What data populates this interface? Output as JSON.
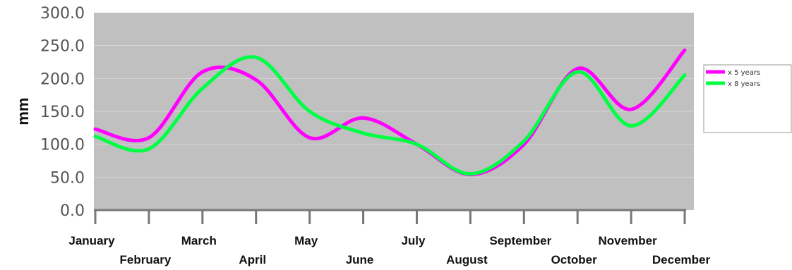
{
  "chart_data": {
    "type": "line",
    "title": "",
    "xlabel": "",
    "ylabel": "mm",
    "ylim": [
      0,
      300
    ],
    "y_ticks": [
      "0.0",
      "50.0",
      "100.0",
      "150.0",
      "200.0",
      "250.0",
      "300.0"
    ],
    "categories": [
      "January",
      "February",
      "March",
      "April",
      "May",
      "June",
      "July",
      "August",
      "September",
      "October",
      "November",
      "December"
    ],
    "series": [
      {
        "name": "x 5 years",
        "color": "#ff00ff",
        "values": [
          123,
          110,
          210,
          198,
          110,
          140,
          100,
          54,
          100,
          215,
          153,
          243
        ]
      },
      {
        "name": "x 8 years",
        "color": "#00ff44",
        "values": [
          112,
          93,
          185,
          232,
          150,
          117,
          100,
          55,
          105,
          210,
          128,
          205
        ]
      }
    ],
    "grid": true,
    "plot_background": "#c0c0c0",
    "legend_position": "right"
  }
}
